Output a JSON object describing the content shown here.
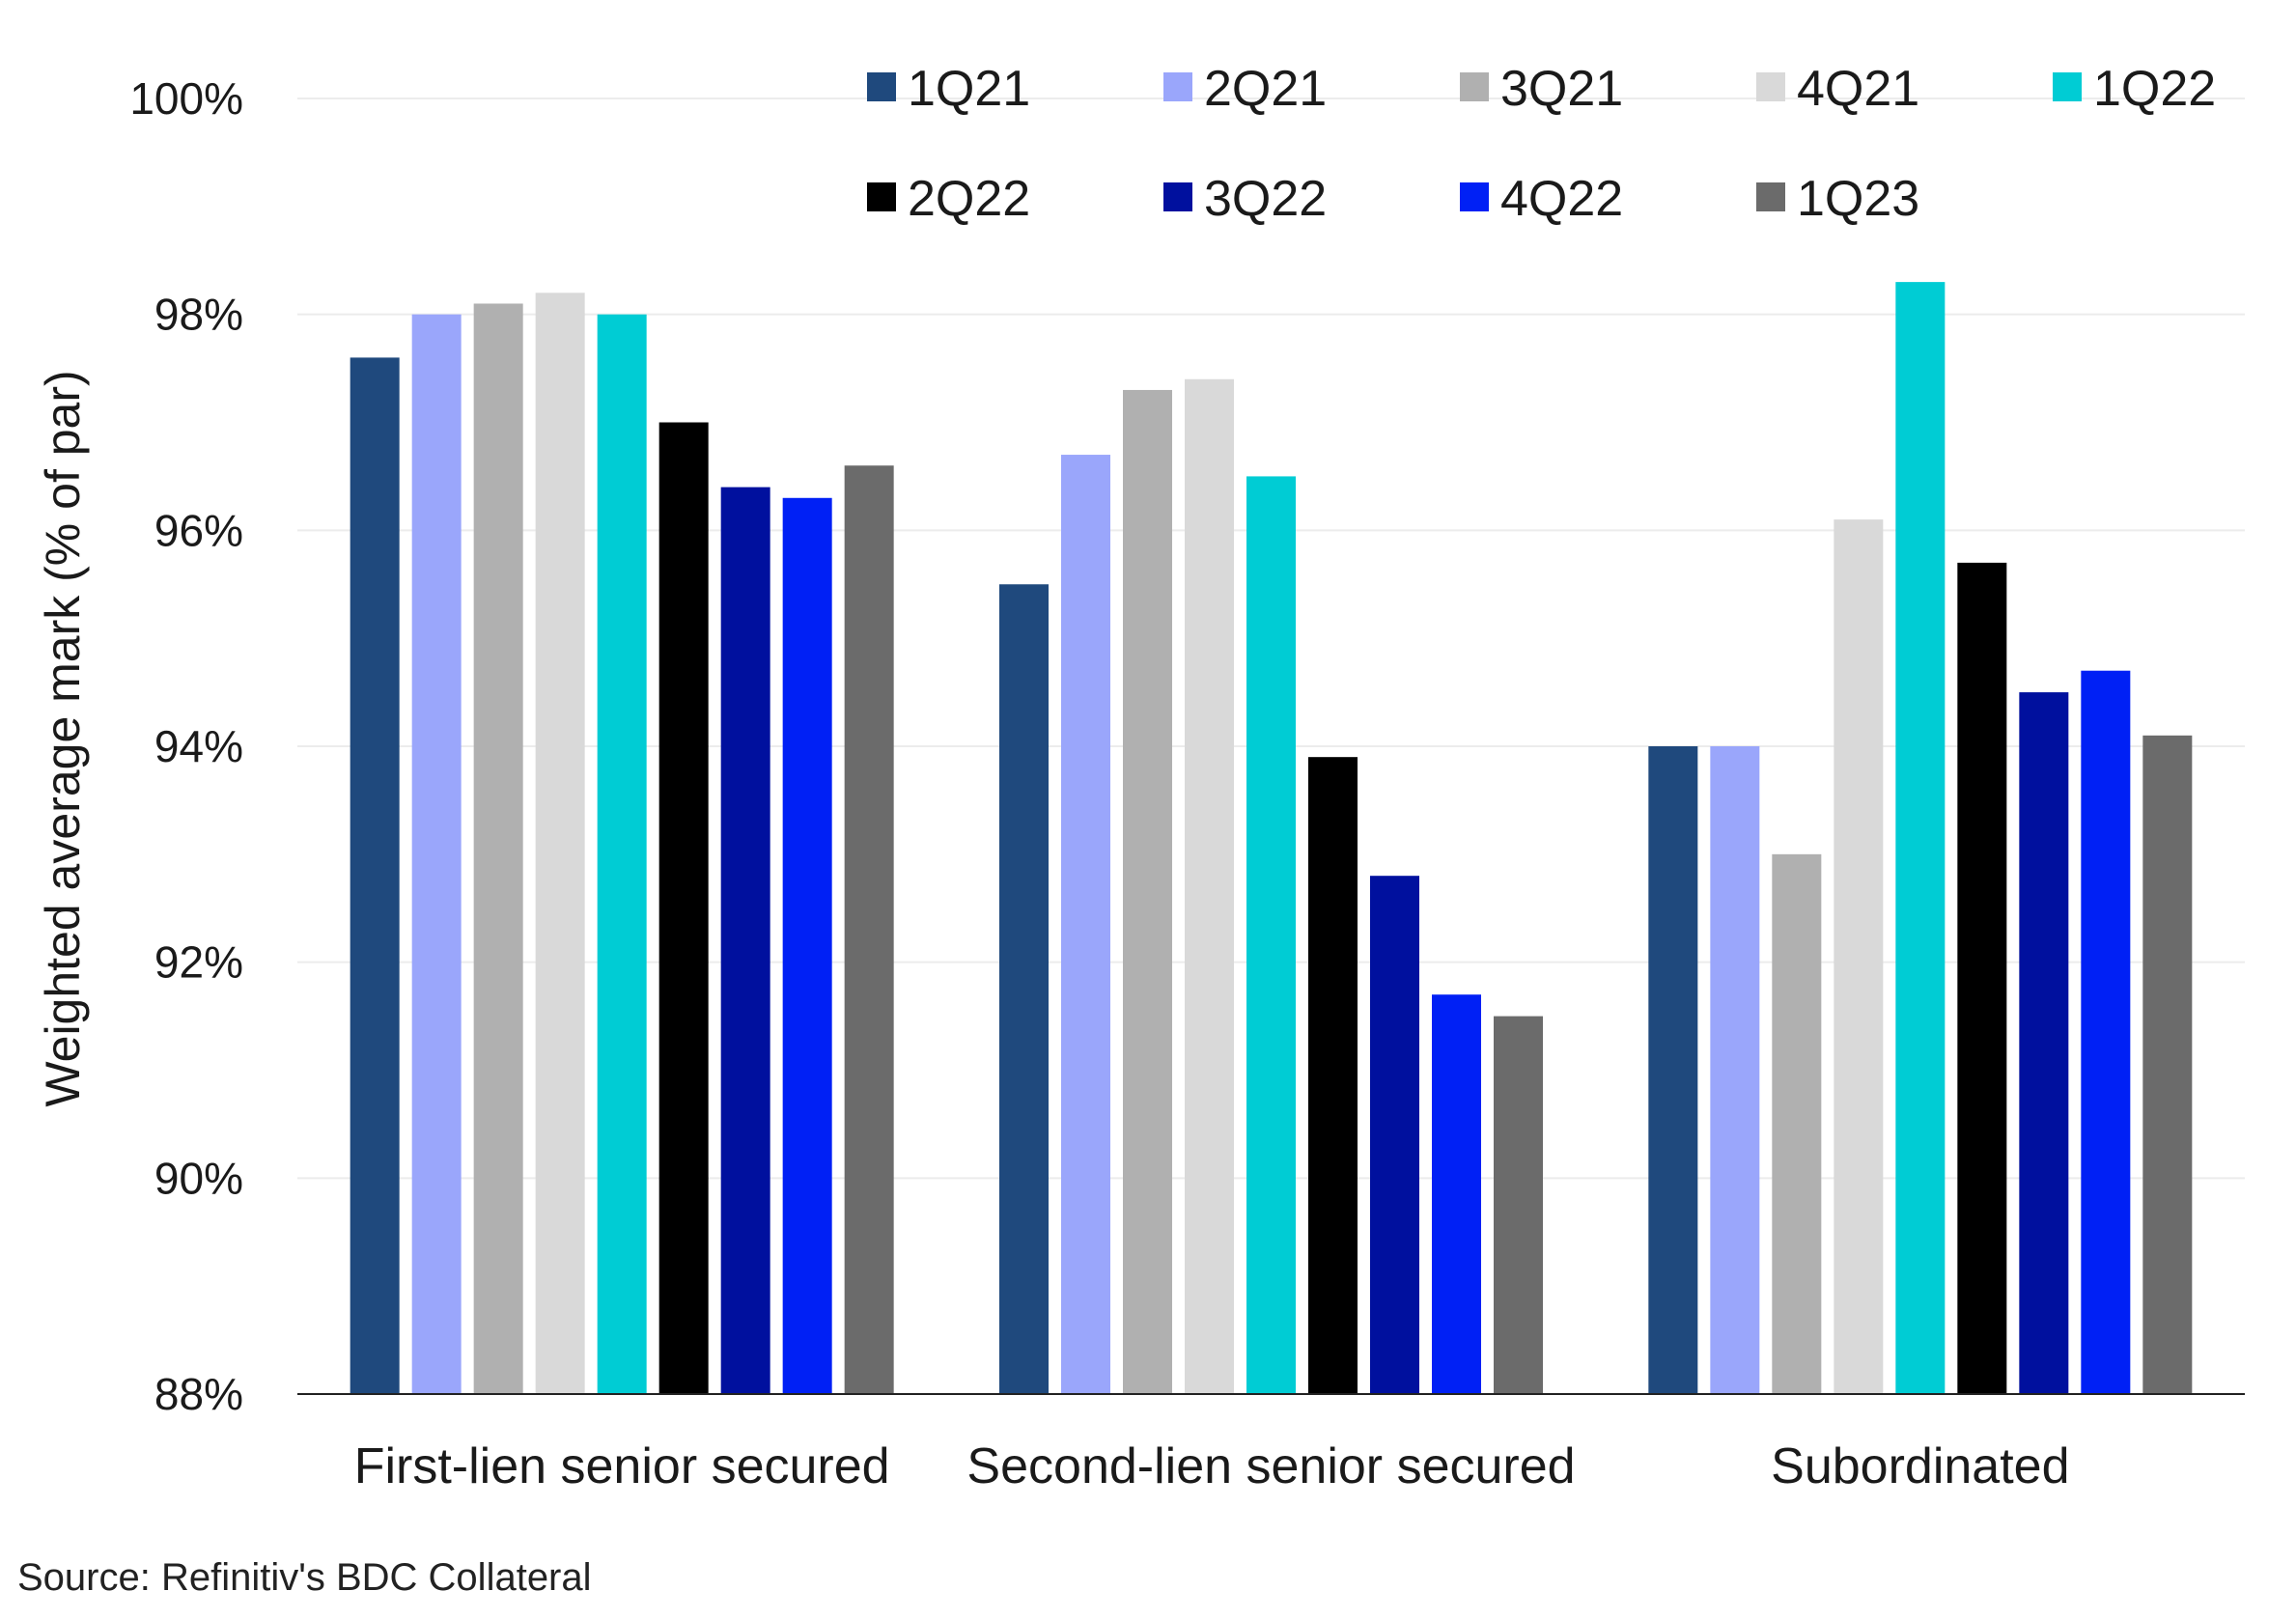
{
  "chart_data": {
    "type": "bar",
    "ylabel": "Weighted average mark (% of par)",
    "xlabel": "",
    "ylim": [
      88,
      100
    ],
    "yticks": [
      "88%",
      "90%",
      "92%",
      "94%",
      "96%",
      "98%",
      "100%"
    ],
    "ytick_values": [
      88,
      90,
      92,
      94,
      96,
      98,
      100
    ],
    "grid": true,
    "legend_position": "top-right",
    "categories": [
      "First-lien senior secured",
      "Second-lien senior secured",
      "Subordinated"
    ],
    "series": [
      {
        "name": "1Q21",
        "color": "#1f497d",
        "values": [
          97.6,
          95.5,
          94.0
        ]
      },
      {
        "name": "2Q21",
        "color": "#9aa6fb",
        "values": [
          98.0,
          96.7,
          94.0
        ]
      },
      {
        "name": "3Q21",
        "color": "#b0b0b0",
        "values": [
          98.1,
          97.3,
          93.0
        ]
      },
      {
        "name": "4Q21",
        "color": "#d9d9d9",
        "values": [
          98.2,
          97.4,
          96.1
        ]
      },
      {
        "name": "1Q22",
        "color": "#00ccd4",
        "values": [
          98.0,
          96.5,
          98.3
        ]
      },
      {
        "name": "2Q22",
        "color": "#000000",
        "values": [
          97.0,
          93.9,
          95.7
        ]
      },
      {
        "name": "3Q22",
        "color": "#00109e",
        "values": [
          96.4,
          92.8,
          94.5
        ]
      },
      {
        "name": "4Q22",
        "color": "#0020f5",
        "values": [
          96.3,
          91.7,
          94.7
        ]
      },
      {
        "name": "1Q23",
        "color": "#6b6b6b",
        "values": [
          96.6,
          91.5,
          94.1
        ]
      }
    ]
  },
  "source": "Source: Refinitiv's BDC Collateral"
}
